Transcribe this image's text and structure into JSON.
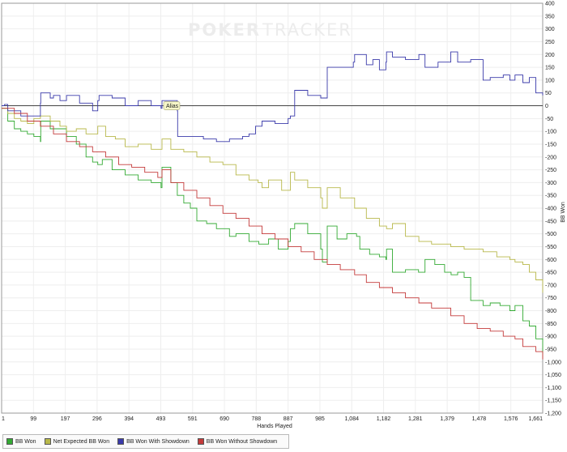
{
  "chart_data": {
    "type": "line",
    "xlabel": "Hands Played",
    "ylabel": "BB Won",
    "xlim": [
      1,
      1661
    ],
    "ylim": [
      -1200,
      400
    ],
    "x_ticks": [
      "1",
      "99",
      "197",
      "296",
      "394",
      "493",
      "591",
      "690",
      "788",
      "887",
      "985",
      "1,084",
      "1,182",
      "1,281",
      "1,379",
      "1,478",
      "1,576",
      "1,661"
    ],
    "y_ticks": [
      "400",
      "350",
      "300",
      "250",
      "200",
      "150",
      "100",
      "50",
      "0",
      "-50",
      "-100",
      "-150",
      "-200",
      "-250",
      "-300",
      "-350",
      "-400",
      "-450",
      "-500",
      "-550",
      "-600",
      "-650",
      "-700",
      "-750",
      "-800",
      "-850",
      "-900",
      "-950",
      "-1,000",
      "-1,050",
      "-1,100",
      "-1,150",
      "-1,200"
    ],
    "watermark": {
      "bold": "POKER",
      "light": "TRACKER"
    },
    "annotation": {
      "label": "Alias",
      "x": 493,
      "y": 0
    },
    "series": [
      {
        "name": "BB Won",
        "color": "#33aa33",
        "x": [
          1,
          20,
          40,
          60,
          80,
          100,
          120,
          121,
          150,
          200,
          230,
          260,
          280,
          296,
          310,
          340,
          380,
          420,
          460,
          490,
          493,
          520,
          540,
          560,
          580,
          600,
          630,
          660,
          700,
          720,
          760,
          790,
          820,
          850,
          880,
          887,
          900,
          940,
          980,
          985,
          1000,
          1030,
          1060,
          1090,
          1100,
          1130,
          1160,
          1180,
          1182,
          1200,
          1240,
          1280,
          1300,
          1330,
          1360,
          1380,
          1400,
          1420,
          1440,
          1478,
          1500,
          1530,
          1560,
          1576,
          1600,
          1620,
          1640,
          1661
        ],
        "y": [
          -10,
          -60,
          -90,
          -100,
          -110,
          -120,
          -140,
          -60,
          -90,
          -120,
          -150,
          -200,
          -220,
          -230,
          -210,
          -250,
          -270,
          -290,
          -300,
          -320,
          -240,
          -300,
          -350,
          -380,
          -400,
          -450,
          -460,
          -480,
          -510,
          -500,
          -530,
          -540,
          -520,
          -560,
          -530,
          -480,
          -460,
          -500,
          -560,
          -610,
          -470,
          -520,
          -500,
          -510,
          -560,
          -580,
          -590,
          -600,
          -560,
          -650,
          -640,
          -650,
          -600,
          -620,
          -650,
          -660,
          -650,
          -670,
          -760,
          -780,
          -770,
          -780,
          -800,
          -780,
          -840,
          -860,
          -910,
          -970
        ]
      },
      {
        "name": "Net Expected BB Won",
        "color": "#b8b84a",
        "x": [
          1,
          20,
          40,
          60,
          80,
          100,
          120,
          150,
          180,
          200,
          230,
          260,
          296,
          320,
          350,
          380,
          420,
          460,
          493,
          520,
          560,
          600,
          640,
          680,
          720,
          760,
          788,
          800,
          820,
          860,
          880,
          887,
          900,
          940,
          980,
          985,
          1000,
          1040,
          1084,
          1120,
          1160,
          1182,
          1200,
          1240,
          1281,
          1320,
          1379,
          1420,
          1478,
          1520,
          1560,
          1576,
          1600,
          1620,
          1640,
          1661
        ],
        "y": [
          -10,
          -30,
          -50,
          -60,
          -70,
          -50,
          -40,
          -60,
          -80,
          -100,
          -90,
          -110,
          -80,
          -120,
          -130,
          -160,
          -150,
          -170,
          -130,
          -170,
          -180,
          -200,
          -220,
          -230,
          -270,
          -290,
          -300,
          -320,
          -290,
          -330,
          -330,
          -260,
          -290,
          -320,
          -360,
          -400,
          -320,
          -360,
          -400,
          -440,
          -470,
          -480,
          -460,
          -510,
          -530,
          -540,
          -550,
          -560,
          -570,
          -590,
          -600,
          -610,
          -620,
          -650,
          -680,
          -730
        ]
      },
      {
        "name": "BB Won With Showdown",
        "color": "#3a3aaa",
        "x": [
          1,
          10,
          20,
          60,
          100,
          120,
          121,
          150,
          160,
          180,
          200,
          240,
          280,
          296,
          300,
          340,
          380,
          420,
          460,
          490,
          493,
          540,
          541,
          580,
          620,
          660,
          700,
          740,
          760,
          780,
          800,
          840,
          880,
          887,
          900,
          940,
          980,
          985,
          1000,
          1040,
          1080,
          1084,
          1120,
          1140,
          1160,
          1180,
          1182,
          1200,
          1240,
          1281,
          1300,
          1340,
          1379,
          1400,
          1440,
          1478,
          1500,
          1540,
          1560,
          1576,
          1600,
          1620,
          1640,
          1661
        ],
        "y": [
          0,
          5,
          -20,
          -40,
          -40,
          10,
          50,
          30,
          40,
          20,
          40,
          10,
          -20,
          20,
          40,
          30,
          0,
          20,
          0,
          -10,
          20,
          -20,
          -120,
          -120,
          -130,
          -140,
          -130,
          -120,
          -110,
          -80,
          -60,
          -70,
          -50,
          -40,
          60,
          40,
          30,
          30,
          150,
          150,
          170,
          200,
          160,
          180,
          140,
          170,
          210,
          190,
          180,
          200,
          150,
          170,
          210,
          170,
          180,
          100,
          110,
          120,
          100,
          120,
          90,
          110,
          50,
          40
        ]
      },
      {
        "name": "BB Won Without Showdown",
        "color": "#c43a3a",
        "x": [
          1,
          40,
          80,
          120,
          160,
          200,
          240,
          280,
          320,
          360,
          400,
          440,
          480,
          493,
          520,
          560,
          600,
          640,
          680,
          720,
          760,
          800,
          840,
          880,
          920,
          960,
          1000,
          1040,
          1084,
          1120,
          1160,
          1200,
          1240,
          1281,
          1320,
          1379,
          1420,
          1460,
          1500,
          1540,
          1576,
          1600,
          1640,
          1661
        ],
        "y": [
          -10,
          -30,
          -60,
          -80,
          -110,
          -140,
          -160,
          -180,
          -200,
          -230,
          -240,
          -260,
          -280,
          -250,
          -300,
          -330,
          -360,
          -390,
          -420,
          -440,
          -470,
          -500,
          -520,
          -550,
          -570,
          -600,
          -620,
          -640,
          -660,
          -690,
          -710,
          -730,
          -750,
          -770,
          -790,
          -820,
          -850,
          -870,
          -880,
          -900,
          -910,
          -940,
          -960,
          -990
        ]
      }
    ]
  }
}
